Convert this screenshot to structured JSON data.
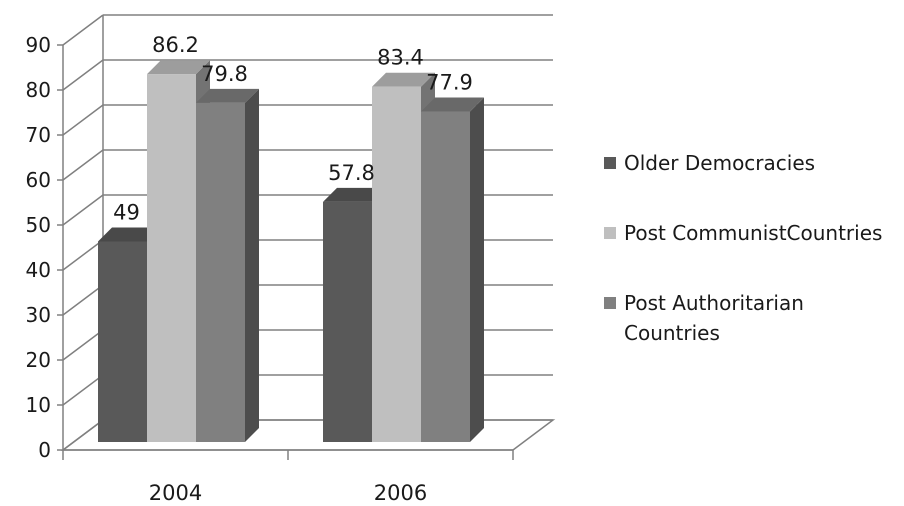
{
  "chart_data": {
    "type": "bar",
    "title": "",
    "xlabel": "",
    "ylabel": "",
    "categories": [
      "2004",
      "2006"
    ],
    "ylim": [
      0,
      90
    ],
    "yticks": [
      0,
      10,
      20,
      30,
      40,
      50,
      60,
      70,
      80,
      90
    ],
    "grid": true,
    "three_d": true,
    "legend_position": "right",
    "series": [
      {
        "name": "Older Democracies",
        "values": [
          49,
          57.8
        ],
        "labels": [
          "49",
          "57.8"
        ],
        "color": "#595959"
      },
      {
        "name": "Post CommunistCountries",
        "values": [
          86.2,
          83.4
        ],
        "labels": [
          "86.2",
          "83.4"
        ],
        "color": "#bfbfbf"
      },
      {
        "name": "Post Authoritarian Countries",
        "values": [
          79.8,
          77.9
        ],
        "labels": [
          "79.8",
          "77.9"
        ],
        "color": "#808080"
      }
    ]
  }
}
